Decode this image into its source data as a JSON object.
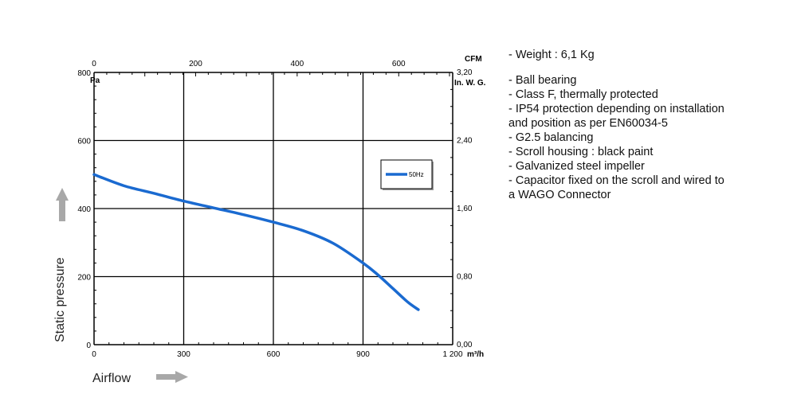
{
  "chart_data": {
    "type": "line",
    "xlabel": "Airflow",
    "ylabel": "Static pressure",
    "x_unit": "m³/h",
    "y_unit": "Pa",
    "top_unit": "CFM",
    "right_unit": "In. W. G.",
    "xlim": [
      0,
      1200
    ],
    "ylim": [
      0,
      800
    ],
    "x_ticks": [
      "0",
      "300",
      "600",
      "900",
      "1 200"
    ],
    "y_ticks": [
      "0",
      "200",
      "400",
      "600",
      "800"
    ],
    "top_ticks": [
      "0",
      "200",
      "400",
      "600"
    ],
    "right_ticks": [
      "0,00",
      "0,80",
      "1,60",
      "2,40",
      "3,20"
    ],
    "grid": true,
    "legend_position": "upper-right",
    "series": [
      {
        "name": "50Hz",
        "color": "#1a6ad0",
        "x": [
          0,
          100,
          200,
          300,
          400,
          500,
          600,
          700,
          800,
          900,
          950,
          1000,
          1050,
          1085
        ],
        "y": [
          500,
          467,
          445,
          422,
          402,
          382,
          360,
          335,
          298,
          240,
          205,
          165,
          125,
          103
        ]
      }
    ]
  },
  "specs": {
    "weight": "- Weight : 6,1 Kg",
    "lines": [
      "- Ball bearing",
      "- Class F, thermally protected",
      "- IP54 protection depending on installation",
      "and position as per EN60034-5",
      "- G2.5 balancing",
      "- Scroll housing : black paint",
      "- Galvanized steel impeller",
      "- Capacitor fixed on the scroll and wired to",
      "a WAGO Connector"
    ]
  }
}
